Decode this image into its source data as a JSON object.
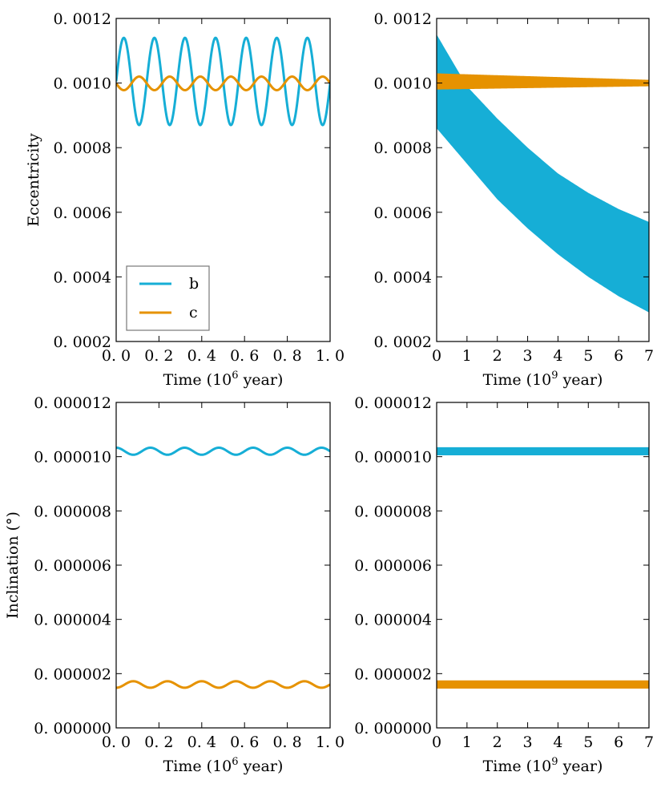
{
  "colors": {
    "b": "#16AED6",
    "c": "#E69200"
  },
  "chart_data": [
    {
      "type": "line",
      "ylabel": "Eccentricity",
      "xlabel_parts": [
        "Time (10",
        "6",
        " year)"
      ],
      "xlim": [
        0,
        1.0
      ],
      "ylim": [
        0.0002,
        0.0012
      ],
      "xticks": [
        0,
        0.2,
        0.4,
        0.6,
        0.8,
        1.0
      ],
      "xtick_labels": [
        "0. 0",
        "0. 2",
        "0. 4",
        "0. 6",
        "0. 8",
        "1. 0"
      ],
      "yticks": [
        0.0002,
        0.0004,
        0.0006,
        0.0008,
        0.001,
        0.0012
      ],
      "ytick_labels": [
        "0. 0002",
        "0. 0004",
        "0. 0006",
        "0. 0008",
        "0. 0010",
        "0. 0012"
      ],
      "legend": {
        "position": "lower-left",
        "entries": [
          "b",
          "c"
        ]
      },
      "series": [
        {
          "name": "b",
          "color_key": "b",
          "mean": 0.001005,
          "amplitude": 0.000135,
          "period": 0.143,
          "phase": 0.0
        },
        {
          "name": "c",
          "color_key": "c",
          "mean": 0.000999,
          "amplitude": 2.1e-05,
          "period": 0.143,
          "phase": 3.14159
        }
      ]
    },
    {
      "type": "area",
      "ylabel": "",
      "xlabel_parts": [
        "Time (10",
        "9",
        " year)"
      ],
      "xlim": [
        0,
        7
      ],
      "ylim": [
        0.0002,
        0.0012
      ],
      "xticks": [
        0,
        1,
        2,
        3,
        4,
        5,
        6,
        7
      ],
      "xtick_labels": [
        "0",
        "1",
        "2",
        "3",
        "4",
        "5",
        "6",
        "7"
      ],
      "yticks": [
        0.0002,
        0.0004,
        0.0006,
        0.0008,
        0.001,
        0.0012
      ],
      "ytick_labels": [
        "0. 0002",
        "0. 0004",
        "0. 0006",
        "0. 0008",
        "0. 0010",
        "0. 0012"
      ],
      "series": [
        {
          "name": "b",
          "color_key": "b",
          "x": [
            0,
            1,
            2,
            3,
            4,
            5,
            6,
            7
          ],
          "upper": [
            0.00115,
            0.00099,
            0.00089,
            0.0008,
            0.00072,
            0.00066,
            0.00061,
            0.00057
          ],
          "lower": [
            0.00086,
            0.00075,
            0.00064,
            0.00055,
            0.00047,
            0.0004,
            0.00034,
            0.00029
          ]
        },
        {
          "name": "c",
          "color_key": "c",
          "x": [
            0,
            7
          ],
          "upper": [
            0.00103,
            0.00101
          ],
          "lower": [
            0.00098,
            0.00099
          ]
        }
      ]
    },
    {
      "type": "line",
      "ylabel": "Inclination (°)",
      "xlabel_parts": [
        "Time (10",
        "6",
        " year)"
      ],
      "xlim": [
        0,
        1.0
      ],
      "ylim": [
        0.0,
        1.2e-05
      ],
      "xticks": [
        0,
        0.2,
        0.4,
        0.6,
        0.8,
        1.0
      ],
      "xtick_labels": [
        "0. 0",
        "0. 2",
        "0. 4",
        "0. 6",
        "0. 8",
        "1. 0"
      ],
      "yticks": [
        0,
        2e-06,
        4e-06,
        6e-06,
        8e-06,
        1e-05,
        1.2e-05
      ],
      "ytick_labels": [
        "0. 000000",
        "0. 000002",
        "0. 000004",
        "0. 000006",
        "0. 000008",
        "0. 000010",
        "0. 000012"
      ],
      "series": [
        {
          "name": "b",
          "color_key": "b",
          "mean": 1.02e-05,
          "amplitude": 1.3e-07,
          "period": 0.16,
          "phase": 1.5708
        },
        {
          "name": "c",
          "color_key": "c",
          "mean": 1.6e-06,
          "amplitude": 1.2e-07,
          "period": 0.16,
          "phase": -1.5708
        }
      ]
    },
    {
      "type": "area",
      "ylabel": "",
      "xlabel_parts": [
        "Time (10",
        "9",
        " year)"
      ],
      "xlim": [
        0,
        7
      ],
      "ylim": [
        0.0,
        1.2e-05
      ],
      "xticks": [
        0,
        1,
        2,
        3,
        4,
        5,
        6,
        7
      ],
      "xtick_labels": [
        "0",
        "1",
        "2",
        "3",
        "4",
        "5",
        "6",
        "7"
      ],
      "yticks": [
        0,
        2e-06,
        4e-06,
        6e-06,
        8e-06,
        1e-05,
        1.2e-05
      ],
      "ytick_labels": [
        "0. 000000",
        "0. 000002",
        "0. 000004",
        "0. 000006",
        "0. 000008",
        "0. 000010",
        "0. 000012"
      ],
      "series": [
        {
          "name": "b",
          "color_key": "b",
          "x": [
            0,
            7
          ],
          "upper": [
            1.035e-05,
            1.035e-05
          ],
          "lower": [
            1.005e-05,
            1.005e-05
          ]
        },
        {
          "name": "c",
          "color_key": "c",
          "x": [
            0,
            7
          ],
          "upper": [
            1.75e-06,
            1.75e-06
          ],
          "lower": [
            1.45e-06,
            1.45e-06
          ]
        }
      ]
    }
  ]
}
